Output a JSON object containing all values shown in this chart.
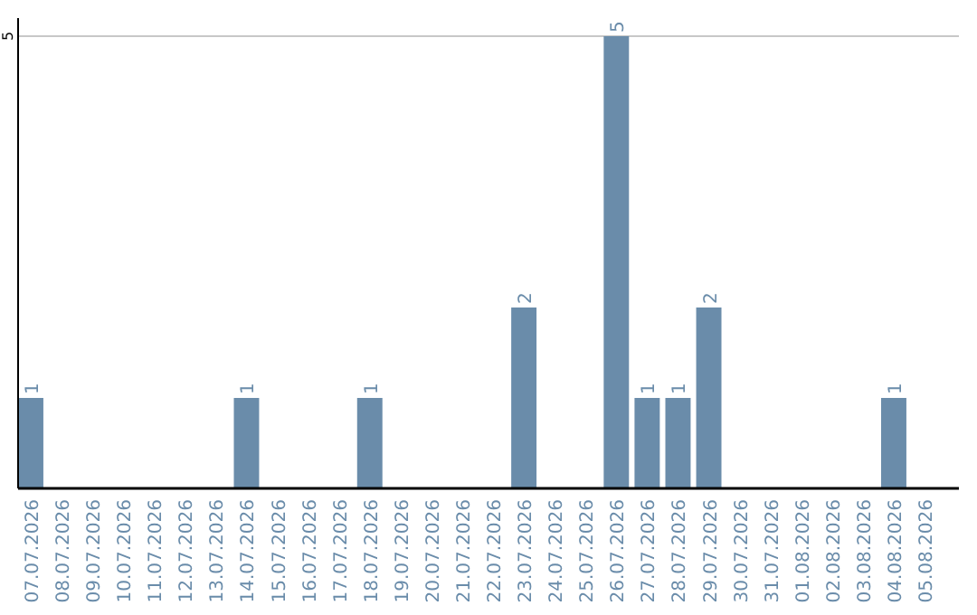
{
  "chart_data": {
    "type": "bar",
    "categories": [
      "07.07.2026",
      "08.07.2026",
      "09.07.2026",
      "10.07.2026",
      "11.07.2026",
      "12.07.2026",
      "13.07.2026",
      "14.07.2026",
      "15.07.2026",
      "16.07.2026",
      "17.07.2026",
      "18.07.2026",
      "19.07.2026",
      "20.07.2026",
      "21.07.2026",
      "22.07.2026",
      "23.07.2026",
      "24.07.2026",
      "25.07.2026",
      "26.07.2026",
      "27.07.2026",
      "28.07.2026",
      "29.07.2026",
      "30.07.2026",
      "31.07.2026",
      "01.08.2026",
      "02.08.2026",
      "03.08.2026",
      "04.08.2026",
      "05.08.2026"
    ],
    "values": [
      1,
      0,
      0,
      0,
      0,
      0,
      0,
      1,
      0,
      0,
      0,
      1,
      0,
      0,
      0,
      0,
      2,
      0,
      0,
      5,
      1,
      1,
      2,
      0,
      0,
      0,
      0,
      0,
      1,
      0
    ],
    "value_labels": [
      "1",
      null,
      null,
      null,
      null,
      null,
      null,
      "1",
      null,
      null,
      null,
      "1",
      null,
      null,
      null,
      null,
      "2",
      null,
      null,
      "5",
      "1",
      "1",
      "2",
      null,
      null,
      null,
      null,
      null,
      "1",
      null
    ],
    "color": "#6a8caa",
    "ylim": [
      0,
      5.2
    ],
    "yticks": [
      5
    ],
    "grid": "y"
  }
}
